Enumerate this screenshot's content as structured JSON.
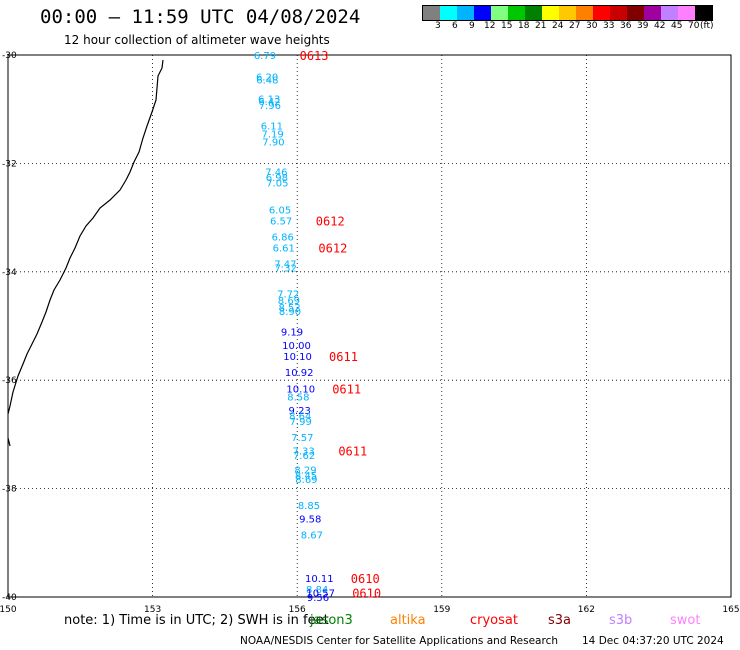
{
  "title": "00:00 – 11:59 UTC 04/08/2024",
  "subtitle": "12 hour collection of altimeter wave heights",
  "legend": {
    "colors": [
      "#808080",
      "#00ffff",
      "#00b4ff",
      "#0000ff",
      "#80ff80",
      "#00c800",
      "#008000",
      "#ffff00",
      "#ffc800",
      "#ff8000",
      "#ff0000",
      "#c80000",
      "#800000",
      "#a000a0",
      "#c080ff",
      "#ff80ff",
      "#000000"
    ],
    "labels": [
      "3",
      "6",
      "9",
      "12",
      "15",
      "18",
      "21",
      "24",
      "27",
      "30",
      "33",
      "36",
      "39",
      "42",
      "45",
      "70",
      "(ft)"
    ]
  },
  "axes": {
    "lon_ticks": [
      "150",
      "153",
      "156",
      "159",
      "162",
      "165"
    ],
    "lat_ticks": [
      "-30",
      "-32",
      "-34",
      "-36",
      "-38",
      "-40"
    ]
  },
  "observations": [
    {
      "lat": -30.0,
      "value": "6.79",
      "color": "#00b4ff"
    },
    {
      "lat": -30.4,
      "value": "6.20",
      "color": "#00b4ff"
    },
    {
      "lat": -30.45,
      "value": "6.48",
      "color": "#00b4ff"
    },
    {
      "lat": -30.8,
      "value": "6.13",
      "color": "#00b4ff"
    },
    {
      "lat": -30.85,
      "value": "6.42",
      "color": "#00b4ff"
    },
    {
      "lat": -30.92,
      "value": "7.96",
      "color": "#00b4ff"
    },
    {
      "lat": -31.3,
      "value": "6.11",
      "color": "#00b4ff"
    },
    {
      "lat": -31.45,
      "value": "7.19",
      "color": "#00b4ff"
    },
    {
      "lat": -31.6,
      "value": "7.90",
      "color": "#00b4ff"
    },
    {
      "lat": -32.15,
      "value": "7.46",
      "color": "#00b4ff"
    },
    {
      "lat": -32.25,
      "value": "6.98",
      "color": "#00b4ff"
    },
    {
      "lat": -32.35,
      "value": "7.05",
      "color": "#00b4ff"
    },
    {
      "lat": -32.85,
      "value": "6.05",
      "color": "#00b4ff"
    },
    {
      "lat": -33.05,
      "value": "6.57",
      "color": "#00b4ff"
    },
    {
      "lat": -33.35,
      "value": "6.86",
      "color": "#00b4ff"
    },
    {
      "lat": -33.55,
      "value": "6.61",
      "color": "#00b4ff"
    },
    {
      "lat": -33.85,
      "value": "7.47",
      "color": "#00b4ff"
    },
    {
      "lat": -33.92,
      "value": "7.32",
      "color": "#00b4ff"
    },
    {
      "lat": -34.4,
      "value": "7.72",
      "color": "#00b4ff"
    },
    {
      "lat": -34.52,
      "value": "8.69",
      "color": "#00b4ff"
    },
    {
      "lat": -34.65,
      "value": "8.52",
      "color": "#00b4ff"
    },
    {
      "lat": -34.72,
      "value": "8.90",
      "color": "#00b4ff"
    },
    {
      "lat": -35.1,
      "value": "9.19",
      "color": "#0000ff"
    },
    {
      "lat": -35.35,
      "value": "10.00",
      "color": "#0000ff"
    },
    {
      "lat": -35.55,
      "value": "10.10",
      "color": "#0000ff"
    },
    {
      "lat": -35.85,
      "value": "10.92",
      "color": "#0000ff"
    },
    {
      "lat": -36.15,
      "value": "10.10",
      "color": "#0000ff"
    },
    {
      "lat": -36.3,
      "value": "8.58",
      "color": "#00b4ff"
    },
    {
      "lat": -36.55,
      "value": "9.23",
      "color": "#0000ff"
    },
    {
      "lat": -36.65,
      "value": "8.64",
      "color": "#00b4ff"
    },
    {
      "lat": -36.75,
      "value": "7.99",
      "color": "#00b4ff"
    },
    {
      "lat": -37.05,
      "value": "7.57",
      "color": "#00b4ff"
    },
    {
      "lat": -37.3,
      "value": "7.33",
      "color": "#00b4ff"
    },
    {
      "lat": -37.38,
      "value": "7.62",
      "color": "#00b4ff"
    },
    {
      "lat": -37.65,
      "value": "8.29",
      "color": "#00b4ff"
    },
    {
      "lat": -37.75,
      "value": "8.45",
      "color": "#00b4ff"
    },
    {
      "lat": -37.82,
      "value": "8.69",
      "color": "#00b4ff"
    },
    {
      "lat": -38.3,
      "value": "8.85",
      "color": "#00b4ff"
    },
    {
      "lat": -38.55,
      "value": "9.58",
      "color": "#0000ff"
    },
    {
      "lat": -38.85,
      "value": "8.67",
      "color": "#00b4ff"
    },
    {
      "lat": -39.65,
      "value": "10.11",
      "color": "#0000ff"
    },
    {
      "lat": -39.85,
      "value": "8.84",
      "color": "#00b4ff"
    },
    {
      "lat": -39.92,
      "value": "10.57",
      "color": "#0000ff"
    },
    {
      "lat": -40.0,
      "value": "9.56",
      "color": "#0000ff"
    }
  ],
  "track_labels": [
    {
      "text": "0613",
      "lat": -30.0
    },
    {
      "text": "0612",
      "lat": -33.05
    },
    {
      "text": "0612",
      "lat": -33.55
    },
    {
      "text": "0611",
      "lat": -35.55
    },
    {
      "text": "0611",
      "lat": -36.15
    },
    {
      "text": "0611",
      "lat": -37.3
    },
    {
      "text": "0610",
      "lat": -39.65
    },
    {
      "text": "0610",
      "lat": -39.92
    }
  ],
  "note": "note: 1) Time is in UTC; 2) SWH is in feet",
  "satellites": [
    {
      "name": "jason3",
      "color": "#008000"
    },
    {
      "name": "altika",
      "color": "#ff8000"
    },
    {
      "name": "cryosat",
      "color": "#ff0000"
    },
    {
      "name": "s3a",
      "color": "#800000"
    },
    {
      "name": "s3b",
      "color": "#c080ff"
    },
    {
      "name": "swot",
      "color": "#ff80ff"
    }
  ],
  "credit": "NOAA/NESDIS Center for Satellite Applications and Research",
  "timestamp": "14 Dec 04:37:20 UTC 2024"
}
